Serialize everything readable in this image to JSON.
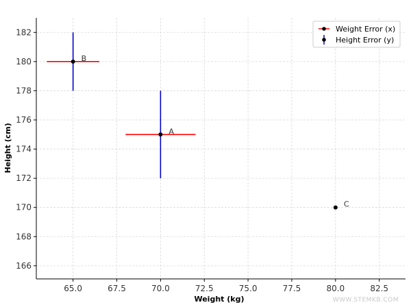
{
  "chart_data": {
    "type": "scatter",
    "title": "",
    "xlabel": "Weight (kg)",
    "ylabel": "Height (cm)",
    "xlim": [
      62.9,
      84.0
    ],
    "ylim": [
      165.1,
      183.0
    ],
    "x_ticks": [
      65.0,
      67.5,
      70.0,
      72.5,
      75.0,
      77.5,
      80.0,
      82.5
    ],
    "x_tick_labels": [
      "65.0",
      "67.5",
      "70.0",
      "72.5",
      "75.0",
      "77.5",
      "80.0",
      "82.5"
    ],
    "y_ticks": [
      166,
      168,
      170,
      172,
      174,
      176,
      178,
      180,
      182
    ],
    "y_tick_labels": [
      "166",
      "168",
      "170",
      "172",
      "174",
      "176",
      "178",
      "180",
      "182"
    ],
    "grid": true,
    "legend_position": "top-right",
    "points": [
      {
        "label": "A",
        "x": 70,
        "y": 175,
        "xerr": 2.0,
        "yerr": 3.0
      },
      {
        "label": "B",
        "x": 65,
        "y": 180,
        "xerr": 1.5,
        "yerr": 2.0
      },
      {
        "label": "C",
        "x": 80,
        "y": 170,
        "xerr": 0,
        "yerr": 0
      }
    ],
    "legend": [
      {
        "name": "Weight Error (x)",
        "color": "#ff0000"
      },
      {
        "name": "Height Error (y)",
        "color": "#0000cc"
      }
    ],
    "colors": {
      "x_error": "#ff0000",
      "y_error": "#0000cc",
      "point": "#000000",
      "grid": "#d9d9d9"
    }
  },
  "watermark": "WWW.STEMKB.COM"
}
